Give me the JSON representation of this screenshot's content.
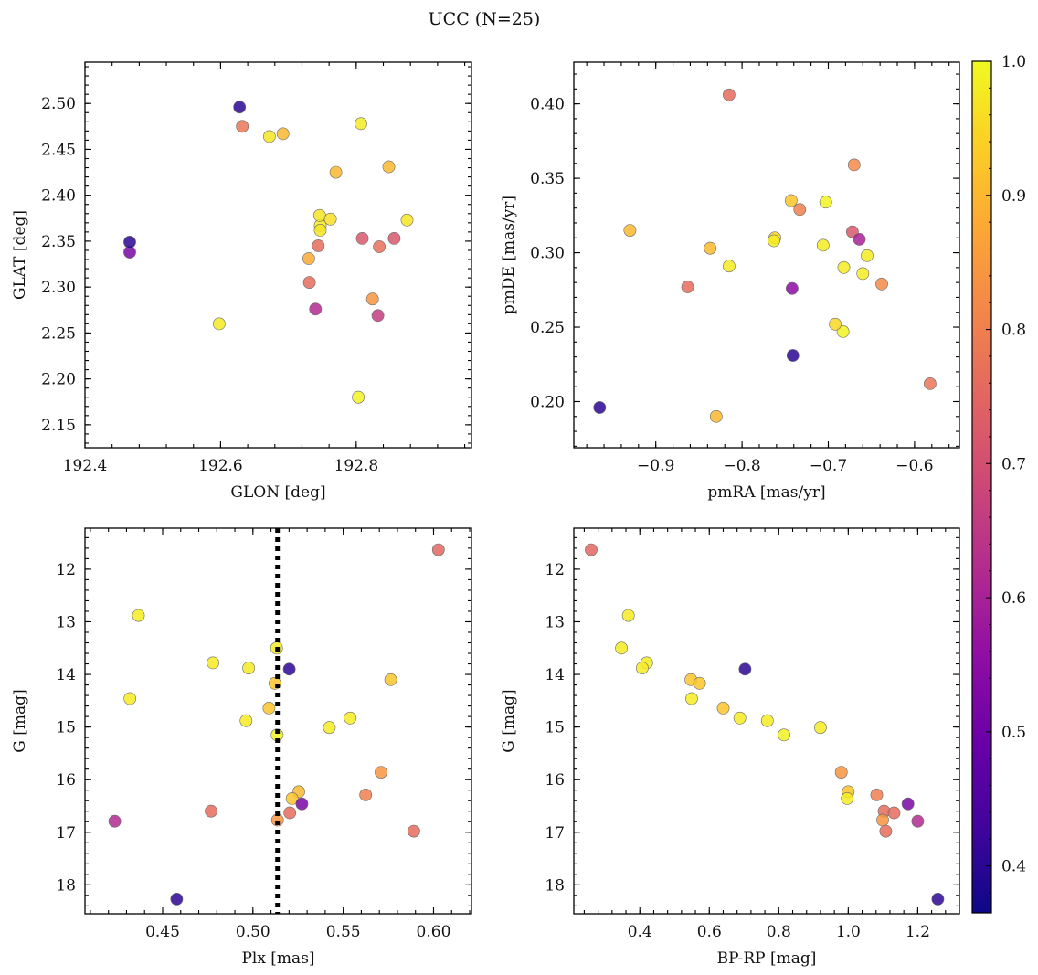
{
  "figure": {
    "title": "UCC (N=25)"
  },
  "colorbar": {
    "colormap": "plasma",
    "range": [
      0.365,
      1.0
    ],
    "ticks": [
      0.4,
      0.5,
      0.6,
      0.7,
      0.8,
      0.9,
      1.0
    ],
    "tick_labels": [
      "0.4",
      "0.5",
      "0.6",
      "0.7",
      "0.8",
      "0.9",
      "1.0"
    ]
  },
  "chart_data": [
    {
      "id": "glon-glat",
      "type": "scatter",
      "title": "",
      "xlabel": "GLON [deg]",
      "ylabel": "GLAT [deg]",
      "xlim": [
        192.4,
        192.97
      ],
      "ylim": [
        2.125,
        2.545
      ],
      "yinvert": false,
      "xticks": [
        192.4,
        192.6,
        192.8
      ],
      "xtick_labels": [
        "192.4",
        "192.6",
        "192.8"
      ],
      "yticks": [
        2.15,
        2.2,
        2.25,
        2.3,
        2.35,
        2.4,
        2.45,
        2.5
      ],
      "ytick_labels": [
        "2.15",
        "2.20",
        "2.25",
        "2.30",
        "2.35",
        "2.40",
        "2.45",
        "2.50"
      ],
      "x": [
        192.466,
        192.466,
        192.628,
        192.731,
        192.74,
        192.744,
        192.632,
        192.73,
        192.747,
        192.747,
        192.77,
        192.848,
        192.824,
        192.803,
        192.598,
        192.807,
        192.692,
        192.672,
        192.746,
        192.809,
        192.832,
        192.762,
        192.834,
        192.856,
        192.875
      ],
      "y": [
        2.338,
        2.349,
        2.496,
        2.305,
        2.276,
        2.345,
        2.475,
        2.331,
        2.367,
        2.362,
        2.425,
        2.431,
        2.287,
        2.18,
        2.26,
        2.478,
        2.467,
        2.464,
        2.378,
        2.353,
        2.269,
        2.374,
        2.344,
        2.353,
        2.373
      ],
      "c": [
        0.52,
        0.4,
        0.4,
        0.76,
        0.62,
        0.76,
        0.78,
        0.88,
        0.98,
        0.97,
        0.9,
        0.9,
        0.84,
        0.99,
        0.98,
        0.98,
        0.9,
        0.97,
        0.97,
        0.72,
        0.66,
        0.96,
        0.77,
        0.72,
        0.97
      ]
    },
    {
      "id": "pmra-pmde",
      "type": "scatter",
      "title": "",
      "xlabel": "pmRA [mas/yr]",
      "ylabel": "pmDE [mas/yr]",
      "xlim": [
        -0.995,
        -0.548
      ],
      "ylim": [
        0.169,
        0.428
      ],
      "yinvert": false,
      "xticks": [
        -0.9,
        -0.8,
        -0.7,
        -0.6
      ],
      "xtick_labels": [
        "−0.9",
        "−0.8",
        "−0.7",
        "−0.6"
      ],
      "yticks": [
        0.2,
        0.25,
        0.3,
        0.35,
        0.4
      ],
      "ytick_labels": [
        "0.20",
        "0.25",
        "0.30",
        "0.35",
        "0.40"
      ],
      "x": [
        -0.965,
        -0.741,
        -0.815,
        -0.742,
        -0.67,
        -0.93,
        -0.837,
        -0.762,
        -0.763,
        -0.706,
        -0.683,
        -0.692,
        -0.655,
        -0.638,
        -0.863,
        -0.815,
        -0.83,
        -0.743,
        -0.703,
        -0.672,
        -0.664,
        -0.733,
        -0.682,
        -0.66,
        -0.582
      ],
      "y": [
        0.196,
        0.231,
        0.406,
        0.276,
        0.359,
        0.315,
        0.303,
        0.31,
        0.308,
        0.305,
        0.247,
        0.252,
        0.298,
        0.279,
        0.277,
        0.291,
        0.19,
        0.335,
        0.334,
        0.314,
        0.309,
        0.329,
        0.29,
        0.286,
        0.212
      ],
      "c": [
        0.4,
        0.4,
        0.76,
        0.55,
        0.82,
        0.9,
        0.9,
        0.95,
        0.98,
        0.98,
        0.99,
        0.95,
        0.98,
        0.82,
        0.76,
        0.98,
        0.9,
        0.92,
        0.99,
        0.72,
        0.6,
        0.8,
        0.98,
        0.98,
        0.78
      ]
    },
    {
      "id": "plx-g",
      "type": "scatter",
      "title": "",
      "xlabel": "Plx [mas]",
      "ylabel": "G [mag]",
      "xlim": [
        0.407,
        0.621
      ],
      "ylim": [
        18.55,
        11.22
      ],
      "yinvert": true,
      "xticks": [
        0.45,
        0.5,
        0.55,
        0.6
      ],
      "xtick_labels": [
        "0.45",
        "0.50",
        "0.55",
        "0.60"
      ],
      "yticks": [
        12,
        13,
        14,
        15,
        16,
        17,
        18
      ],
      "ytick_labels": [
        "12",
        "13",
        "14",
        "15",
        "16",
        "17",
        "18"
      ],
      "vline": 0.5136,
      "x": [
        0.6027,
        0.4366,
        0.5131,
        0.4779,
        0.4976,
        0.5201,
        0.4319,
        0.5122,
        0.5763,
        0.5089,
        0.4962,
        0.5134,
        0.5538,
        0.5423,
        0.5709,
        0.5254,
        0.5624,
        0.5217,
        0.5271,
        0.5204,
        0.4768,
        0.4235,
        0.5136,
        0.5891,
        0.4578
      ],
      "y": [
        11.63,
        12.88,
        13.5,
        13.78,
        13.88,
        13.9,
        14.46,
        14.17,
        14.1,
        14.64,
        14.88,
        15.15,
        14.83,
        15.01,
        15.86,
        16.23,
        16.29,
        16.36,
        16.46,
        16.63,
        16.6,
        16.79,
        16.77,
        16.98,
        18.27
      ],
      "c": [
        0.75,
        0.98,
        0.98,
        0.98,
        0.98,
        0.4,
        0.98,
        0.92,
        0.92,
        0.92,
        0.98,
        0.99,
        0.98,
        0.98,
        0.84,
        0.9,
        0.8,
        0.92,
        0.52,
        0.76,
        0.76,
        0.62,
        0.84,
        0.76,
        0.4
      ]
    },
    {
      "id": "bprp-g",
      "type": "scatter",
      "title": "",
      "xlabel": "BP-RP [mag]",
      "ylabel": "G [mag]",
      "xlim": [
        0.21,
        1.32
      ],
      "ylim": [
        18.55,
        11.22
      ],
      "yinvert": true,
      "xticks": [
        0.4,
        0.6,
        0.8,
        1.0,
        1.2
      ],
      "xtick_labels": [
        "0.4",
        "0.6",
        "0.8",
        "1.0",
        "1.2"
      ],
      "yticks": [
        12,
        13,
        14,
        15,
        16,
        17,
        18
      ],
      "ytick_labels": [
        "12",
        "13",
        "14",
        "15",
        "16",
        "17",
        "18"
      ],
      "x": [
        0.26,
        0.367,
        0.347,
        0.42,
        0.407,
        0.703,
        0.547,
        0.549,
        0.572,
        0.64,
        0.688,
        0.767,
        0.815,
        0.92,
        0.98,
        1.0,
        0.997,
        1.082,
        1.103,
        1.099,
        1.132,
        1.172,
        1.2,
        1.108,
        1.258
      ],
      "y": [
        11.63,
        12.88,
        13.5,
        13.78,
        13.88,
        13.9,
        14.1,
        14.46,
        14.17,
        14.64,
        14.83,
        14.88,
        15.15,
        15.01,
        15.86,
        16.23,
        16.36,
        16.29,
        16.6,
        16.77,
        16.63,
        16.46,
        16.79,
        16.98,
        18.27
      ],
      "c": [
        0.75,
        0.98,
        0.98,
        0.98,
        0.98,
        0.4,
        0.92,
        0.98,
        0.92,
        0.92,
        0.98,
        0.98,
        0.99,
        0.98,
        0.84,
        0.92,
        0.98,
        0.8,
        0.76,
        0.84,
        0.76,
        0.52,
        0.62,
        0.76,
        0.4
      ]
    }
  ]
}
